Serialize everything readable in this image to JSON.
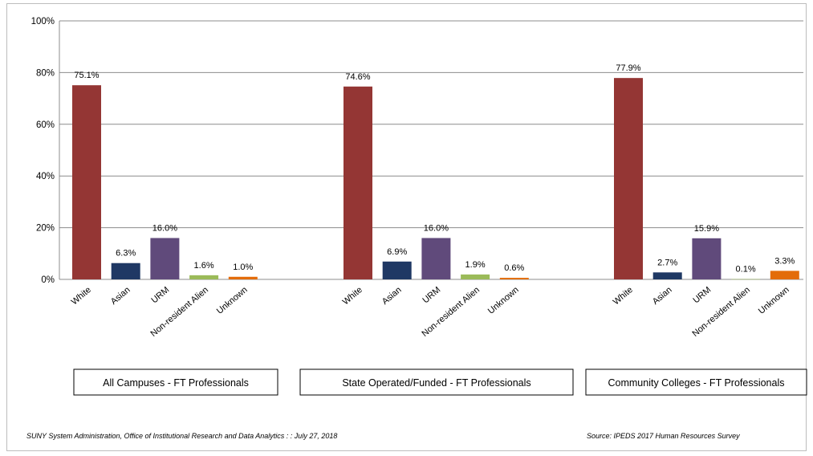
{
  "chart_data": {
    "type": "bar",
    "categories": [
      "White",
      "Asian",
      "URM",
      "Non-resident Alien",
      "Unknown"
    ],
    "groups": [
      {
        "label": "All Campuses - FT Professionals",
        "values": [
          75.1,
          6.3,
          16.0,
          1.6,
          1.0
        ]
      },
      {
        "label": "State Operated/Funded - FT Professionals",
        "values": [
          74.6,
          6.9,
          16.0,
          1.9,
          0.6
        ]
      },
      {
        "label": "Community Colleges - FT Professionals",
        "values": [
          77.9,
          2.7,
          15.9,
          0.1,
          3.3
        ]
      }
    ],
    "data_labels": [
      [
        "75.1%",
        "6.3%",
        "16.0%",
        "1.6%",
        "1.0%"
      ],
      [
        "74.6%",
        "6.9%",
        "16.0%",
        "1.9%",
        "0.6%"
      ],
      [
        "77.9%",
        "2.7%",
        "15.9%",
        "0.1%",
        "3.3%"
      ]
    ],
    "category_colors": [
      "#943634",
      "#1F3864",
      "#604A7B",
      "#9BBB59",
      "#E36C09"
    ],
    "yticks": [
      0,
      20,
      40,
      60,
      80,
      100
    ],
    "ytick_labels": [
      "0%",
      "20%",
      "40%",
      "60%",
      "80%",
      "100%"
    ],
    "ylim": [
      0,
      100
    ],
    "grid": true,
    "title": "",
    "xlabel": "",
    "ylabel": ""
  },
  "footer": {
    "left": "SUNY System Administration, Office of Institutional Research and Data Analytics : : July 27, 2018",
    "right": "Source:  IPEDS 2017 Human Resources Survey"
  }
}
